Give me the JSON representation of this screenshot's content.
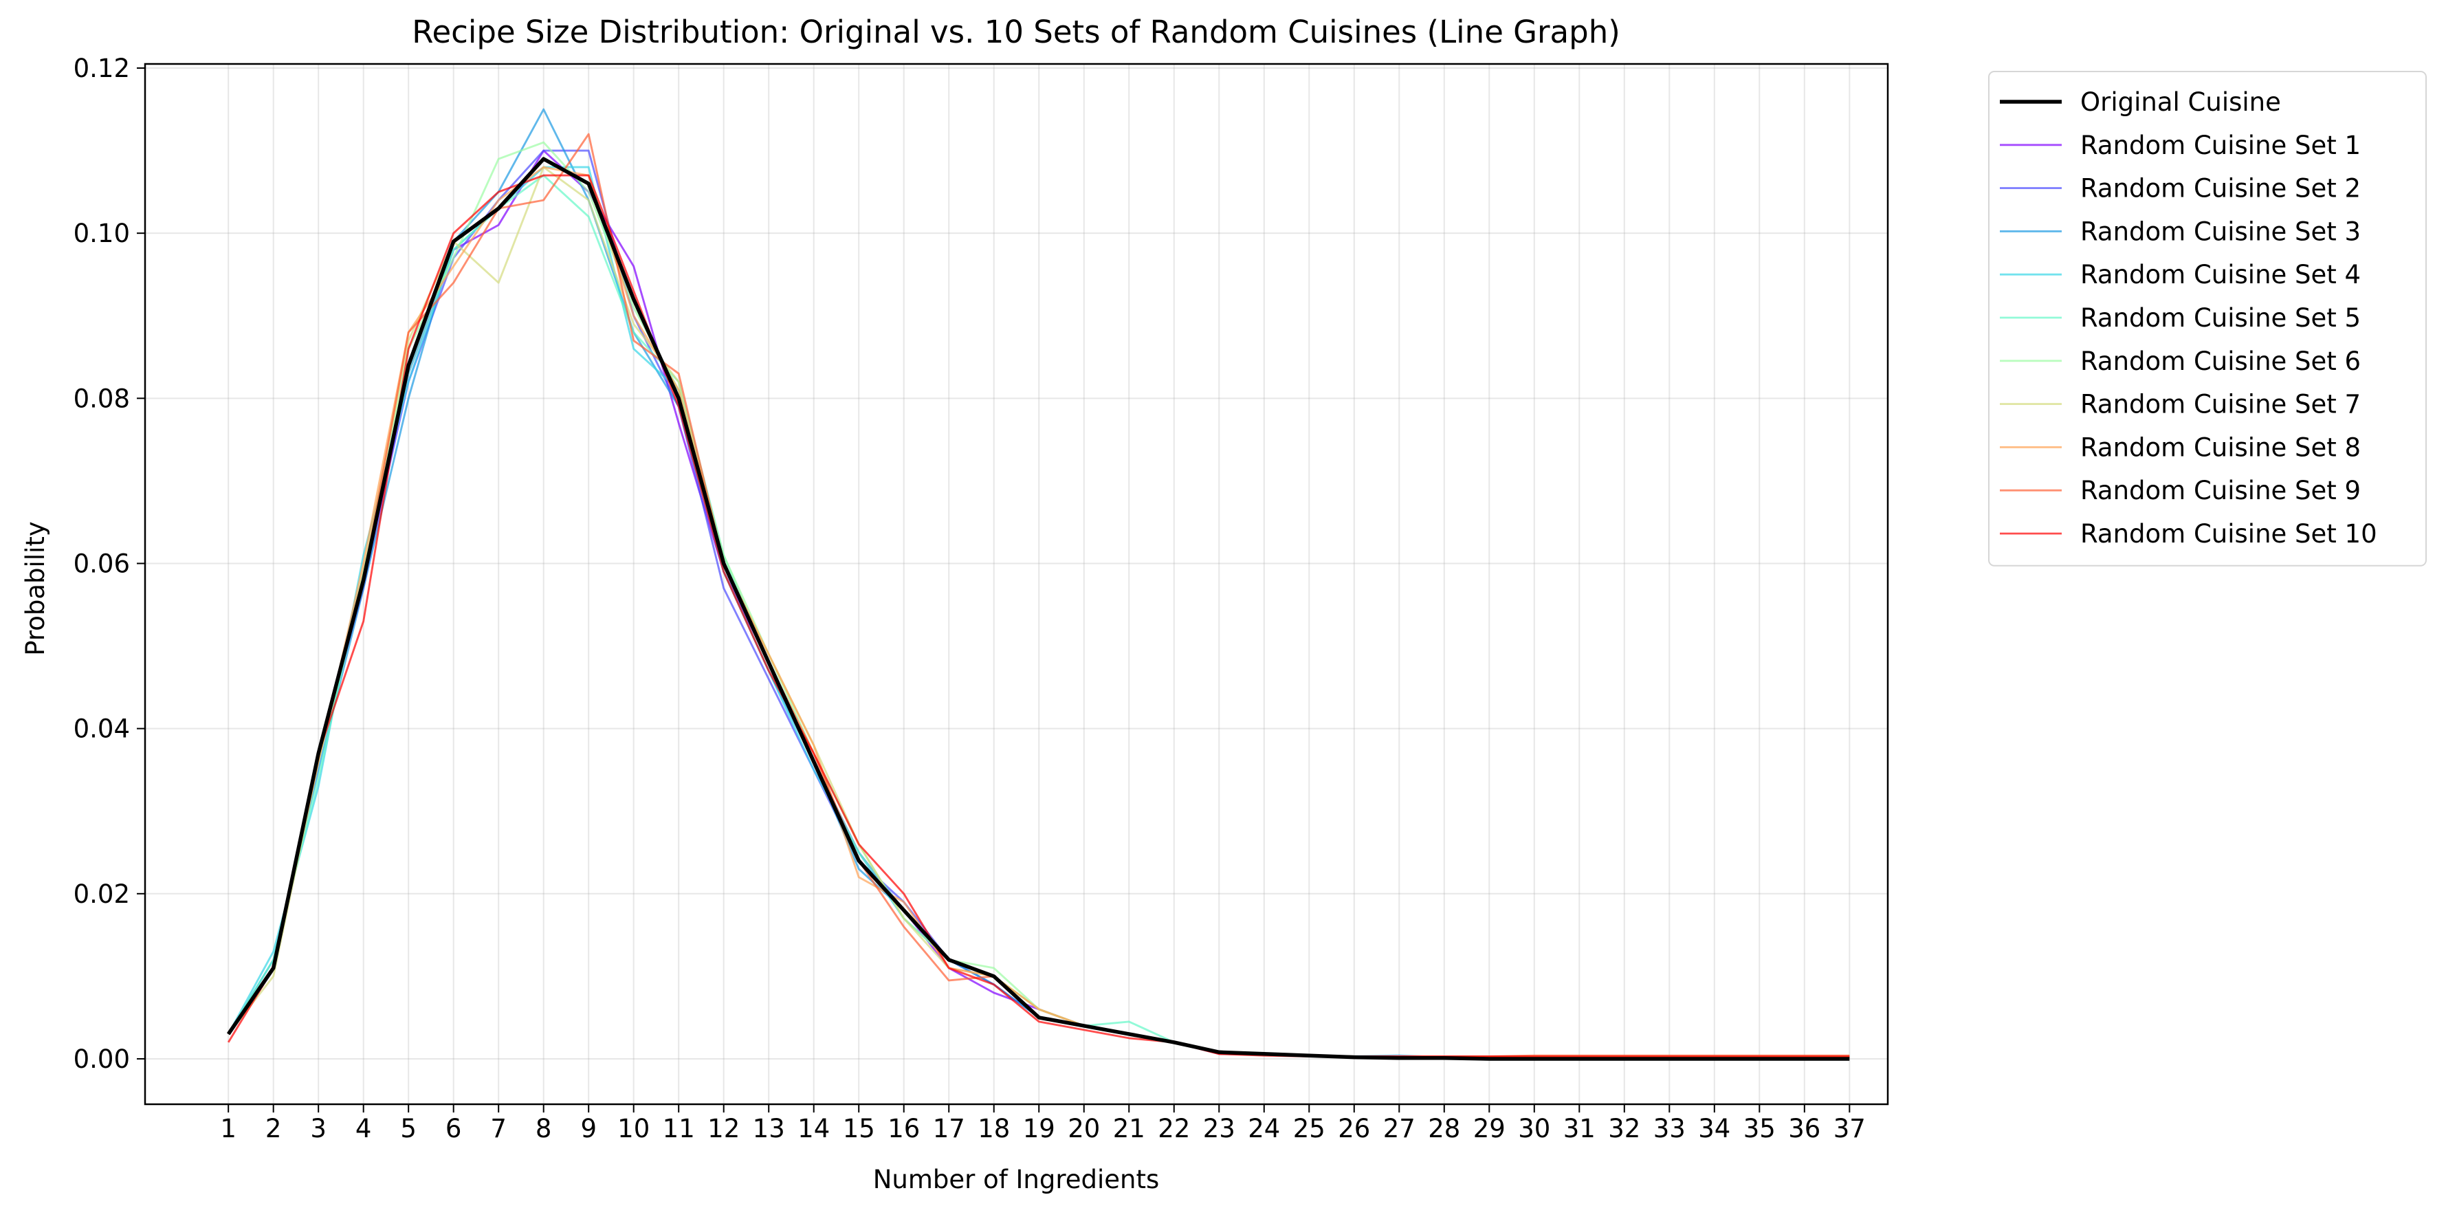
{
  "chart_data": {
    "type": "line",
    "title": "Recipe Size Distribution: Original vs. 10 Sets of Random Cuisines (Line Graph)",
    "xlabel": "Number of Ingredients",
    "ylabel": "Probability",
    "xlim": [
      -0.85,
      37.85
    ],
    "ylim": [
      -0.0055,
      0.1205
    ],
    "xticks": [
      1,
      2,
      3,
      4,
      5,
      6,
      7,
      8,
      9,
      10,
      11,
      12,
      13,
      14,
      15,
      16,
      17,
      18,
      19,
      20,
      21,
      22,
      23,
      24,
      25,
      26,
      27,
      28,
      29,
      30,
      31,
      32,
      33,
      34,
      35,
      36,
      37
    ],
    "xtick_labels": [
      "1",
      "2",
      "3",
      "4",
      "5",
      "6",
      "7",
      "8",
      "9",
      "10",
      "11",
      "12",
      "13",
      "14",
      "15",
      "16",
      "17",
      "18",
      "19",
      "20",
      "21",
      "22",
      "23",
      "24",
      "25",
      "26",
      "27",
      "28",
      "29",
      "30",
      "31",
      "32",
      "33",
      "34",
      "35",
      "36",
      "37"
    ],
    "yticks": [
      0.0,
      0.02,
      0.04,
      0.06,
      0.08,
      0.1,
      0.12
    ],
    "ytick_labels": [
      "0.00",
      "0.02",
      "0.04",
      "0.06",
      "0.08",
      "0.10",
      "0.12"
    ],
    "grid": true,
    "legend_position": "outside-top-right",
    "x": [
      1,
      2,
      3,
      4,
      5,
      6,
      7,
      8,
      9,
      10,
      11,
      12,
      13,
      14,
      15,
      16,
      17,
      18,
      19,
      20,
      21,
      22,
      23,
      24,
      25,
      26,
      27,
      28,
      29,
      30,
      31,
      32,
      33,
      34,
      35,
      36,
      37
    ],
    "series": [
      {
        "name": "Original Cuisine",
        "color": "#000000",
        "width": 2.5,
        "values": [
          0.003,
          0.011,
          0.037,
          0.058,
          0.084,
          0.099,
          0.103,
          0.109,
          0.106,
          0.092,
          0.08,
          0.06,
          0.048,
          0.036,
          0.024,
          0.018,
          0.012,
          0.01,
          0.005,
          0.004,
          0.003,
          0.002,
          0.0008,
          0.0006,
          0.0004,
          0.0002,
          0.0001,
          0.0001,
          0.0,
          0.0,
          0.0,
          0.0,
          0.0,
          0.0,
          0.0,
          0.0,
          0.0
        ]
      },
      {
        "name": "Random Cuisine Set 1",
        "color": "#8000ff",
        "width": 1.3,
        "values": [
          0.003,
          0.011,
          0.037,
          0.057,
          0.083,
          0.098,
          0.101,
          0.11,
          0.105,
          0.096,
          0.077,
          0.059,
          0.048,
          0.036,
          0.025,
          0.018,
          0.011,
          0.008,
          0.006,
          0.004,
          0.003,
          0.002,
          0.0006,
          0.0005,
          0.0004,
          0.0002,
          0.0002,
          0.0001,
          0.0002,
          0.0002,
          0.0002,
          0.0002,
          0.0002,
          0.0002,
          0.0002,
          0.0002,
          0.0002
        ]
      },
      {
        "name": "Random Cuisine Set 2",
        "color": "#4c4cff",
        "width": 1.3,
        "values": [
          0.003,
          0.011,
          0.037,
          0.058,
          0.082,
          0.097,
          0.104,
          0.11,
          0.11,
          0.09,
          0.079,
          0.057,
          0.046,
          0.035,
          0.024,
          0.019,
          0.012,
          0.009,
          0.005,
          0.004,
          0.003,
          0.002,
          0.0007,
          0.0006,
          0.0004,
          0.0003,
          0.0002,
          0.0002,
          0.0002,
          0.0002,
          0.0002,
          0.0002,
          0.0002,
          0.0002,
          0.0002,
          0.0002,
          0.0002
        ]
      },
      {
        "name": "Random Cuisine Set 3",
        "color": "#1c9ae3",
        "width": 1.3,
        "values": [
          0.003,
          0.012,
          0.035,
          0.057,
          0.08,
          0.099,
          0.105,
          0.115,
          0.104,
          0.088,
          0.079,
          0.059,
          0.047,
          0.036,
          0.023,
          0.018,
          0.012,
          0.009,
          0.005,
          0.004,
          0.003,
          0.002,
          0.0007,
          0.0005,
          0.0004,
          0.0003,
          0.0004,
          0.0002,
          0.0002,
          0.0002,
          0.0002,
          0.0002,
          0.0002,
          0.0002,
          0.0002,
          0.0002,
          0.0002
        ]
      },
      {
        "name": "Random Cuisine Set 4",
        "color": "#36d6e7",
        "width": 1.3,
        "values": [
          0.003,
          0.013,
          0.033,
          0.061,
          0.082,
          0.098,
          0.103,
          0.108,
          0.108,
          0.086,
          0.081,
          0.059,
          0.047,
          0.035,
          0.025,
          0.017,
          0.012,
          0.01,
          0.005,
          0.004,
          0.003,
          0.002,
          0.0007,
          0.0005,
          0.0004,
          0.0003,
          0.0003,
          0.0002,
          0.0002,
          0.0002,
          0.0002,
          0.0002,
          0.0002,
          0.0002,
          0.0002,
          0.0002,
          0.0002
        ]
      },
      {
        "name": "Random Cuisine Set 5",
        "color": "#64f8c8",
        "width": 1.3,
        "values": [
          0.003,
          0.012,
          0.034,
          0.059,
          0.083,
          0.098,
          0.103,
          0.107,
          0.102,
          0.088,
          0.082,
          0.061,
          0.048,
          0.036,
          0.025,
          0.018,
          0.012,
          0.01,
          0.006,
          0.004,
          0.0045,
          0.002,
          0.0007,
          0.0005,
          0.0004,
          0.0003,
          0.0003,
          0.0002,
          0.0002,
          0.0002,
          0.0002,
          0.0002,
          0.0002,
          0.0002,
          0.0002,
          0.0002,
          0.0002
        ]
      },
      {
        "name": "Random Cuisine Set 6",
        "color": "#9cfca4",
        "width": 1.3,
        "values": [
          0.003,
          0.011,
          0.036,
          0.058,
          0.086,
          0.097,
          0.109,
          0.111,
          0.105,
          0.091,
          0.081,
          0.061,
          0.049,
          0.037,
          0.026,
          0.017,
          0.012,
          0.011,
          0.006,
          0.004,
          0.003,
          0.002,
          0.0007,
          0.0005,
          0.0004,
          0.0003,
          0.0003,
          0.0002,
          0.0003,
          0.0003,
          0.0003,
          0.0003,
          0.0003,
          0.0003,
          0.0003,
          0.0003,
          0.0003
        ]
      },
      {
        "name": "Random Cuisine Set 7",
        "color": "#d4dc7f",
        "width": 1.3,
        "values": [
          0.003,
          0.01,
          0.036,
          0.059,
          0.087,
          0.099,
          0.094,
          0.108,
          0.104,
          0.089,
          0.082,
          0.06,
          0.049,
          0.038,
          0.026,
          0.017,
          0.011,
          0.01,
          0.006,
          0.004,
          0.003,
          0.002,
          0.0007,
          0.0005,
          0.0004,
          0.0003,
          0.0002,
          0.0002,
          0.0003,
          0.0003,
          0.0003,
          0.0003,
          0.0003,
          0.0003,
          0.0003,
          0.0003,
          0.0003
        ]
      },
      {
        "name": "Random Cuisine Set 8",
        "color": "#ffa256",
        "width": 1.3,
        "values": [
          0.003,
          0.011,
          0.036,
          0.06,
          0.088,
          0.096,
          0.104,
          0.108,
          0.107,
          0.09,
          0.081,
          0.06,
          0.049,
          0.038,
          0.022,
          0.019,
          0.011,
          0.01,
          0.006,
          0.004,
          0.003,
          0.002,
          0.0007,
          0.0005,
          0.0004,
          0.0003,
          0.0002,
          0.0002,
          0.0003,
          0.0003,
          0.0003,
          0.0003,
          0.0003,
          0.0003,
          0.0003,
          0.0003,
          0.0003
        ]
      },
      {
        "name": "Random Cuisine Set 9",
        "color": "#ff5f35",
        "width": 1.3,
        "values": [
          0.003,
          0.011,
          0.037,
          0.058,
          0.088,
          0.094,
          0.103,
          0.104,
          0.112,
          0.087,
          0.083,
          0.06,
          0.048,
          0.037,
          0.024,
          0.016,
          0.0095,
          0.01,
          0.005,
          0.004,
          0.003,
          0.002,
          0.0006,
          0.0005,
          0.0004,
          0.0003,
          0.0003,
          0.0003,
          0.0003,
          0.0004,
          0.0004,
          0.0004,
          0.0004,
          0.0004,
          0.0004,
          0.0004,
          0.0004
        ]
      },
      {
        "name": "Random Cuisine Set 10",
        "color": "#ff0000",
        "width": 1.3,
        "values": [
          0.002,
          0.011,
          0.037,
          0.053,
          0.086,
          0.1,
          0.105,
          0.107,
          0.107,
          0.093,
          0.079,
          0.059,
          0.047,
          0.037,
          0.026,
          0.02,
          0.011,
          0.009,
          0.0045,
          0.0035,
          0.0025,
          0.002,
          0.0006,
          0.0004,
          0.0003,
          0.0003,
          0.0003,
          0.0003,
          0.0003,
          0.0003,
          0.0003,
          0.0003,
          0.0003,
          0.0003,
          0.0003,
          0.0003,
          0.0003
        ]
      }
    ]
  }
}
